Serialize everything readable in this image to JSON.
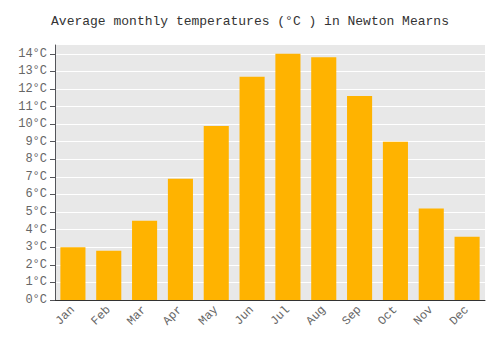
{
  "chart_data": {
    "type": "bar",
    "title": "Average monthly temperatures (°C ) in Newton Mearns",
    "categories": [
      "Jan",
      "Feb",
      "Mar",
      "Apr",
      "May",
      "Jun",
      "Jul",
      "Aug",
      "Sep",
      "Oct",
      "Nov",
      "Dec"
    ],
    "values": [
      3.0,
      2.8,
      4.5,
      6.9,
      9.9,
      12.7,
      14.0,
      13.8,
      11.6,
      9.0,
      5.2,
      3.6
    ],
    "color": "#FFB300",
    "ylim": [
      0,
      14.5
    ],
    "yticks": [
      {
        "value": 0,
        "label": "0°C"
      },
      {
        "value": 1,
        "label": "1°C"
      },
      {
        "value": 2,
        "label": "2°C"
      },
      {
        "value": 3,
        "label": "3°C"
      },
      {
        "value": 4,
        "label": "4°C"
      },
      {
        "value": 5,
        "label": "5°C"
      },
      {
        "value": 6,
        "label": "6°C"
      },
      {
        "value": 7,
        "label": "7°C"
      },
      {
        "value": 8,
        "label": "8°C"
      },
      {
        "value": 9,
        "label": "9°C"
      },
      {
        "value": 10,
        "label": "10°C"
      },
      {
        "value": 11,
        "label": "11°C"
      },
      {
        "value": 12,
        "label": "12°C"
      },
      {
        "value": 13,
        "label": "13°C"
      },
      {
        "value": 14,
        "label": "14°C"
      }
    ],
    "grid": true
  }
}
